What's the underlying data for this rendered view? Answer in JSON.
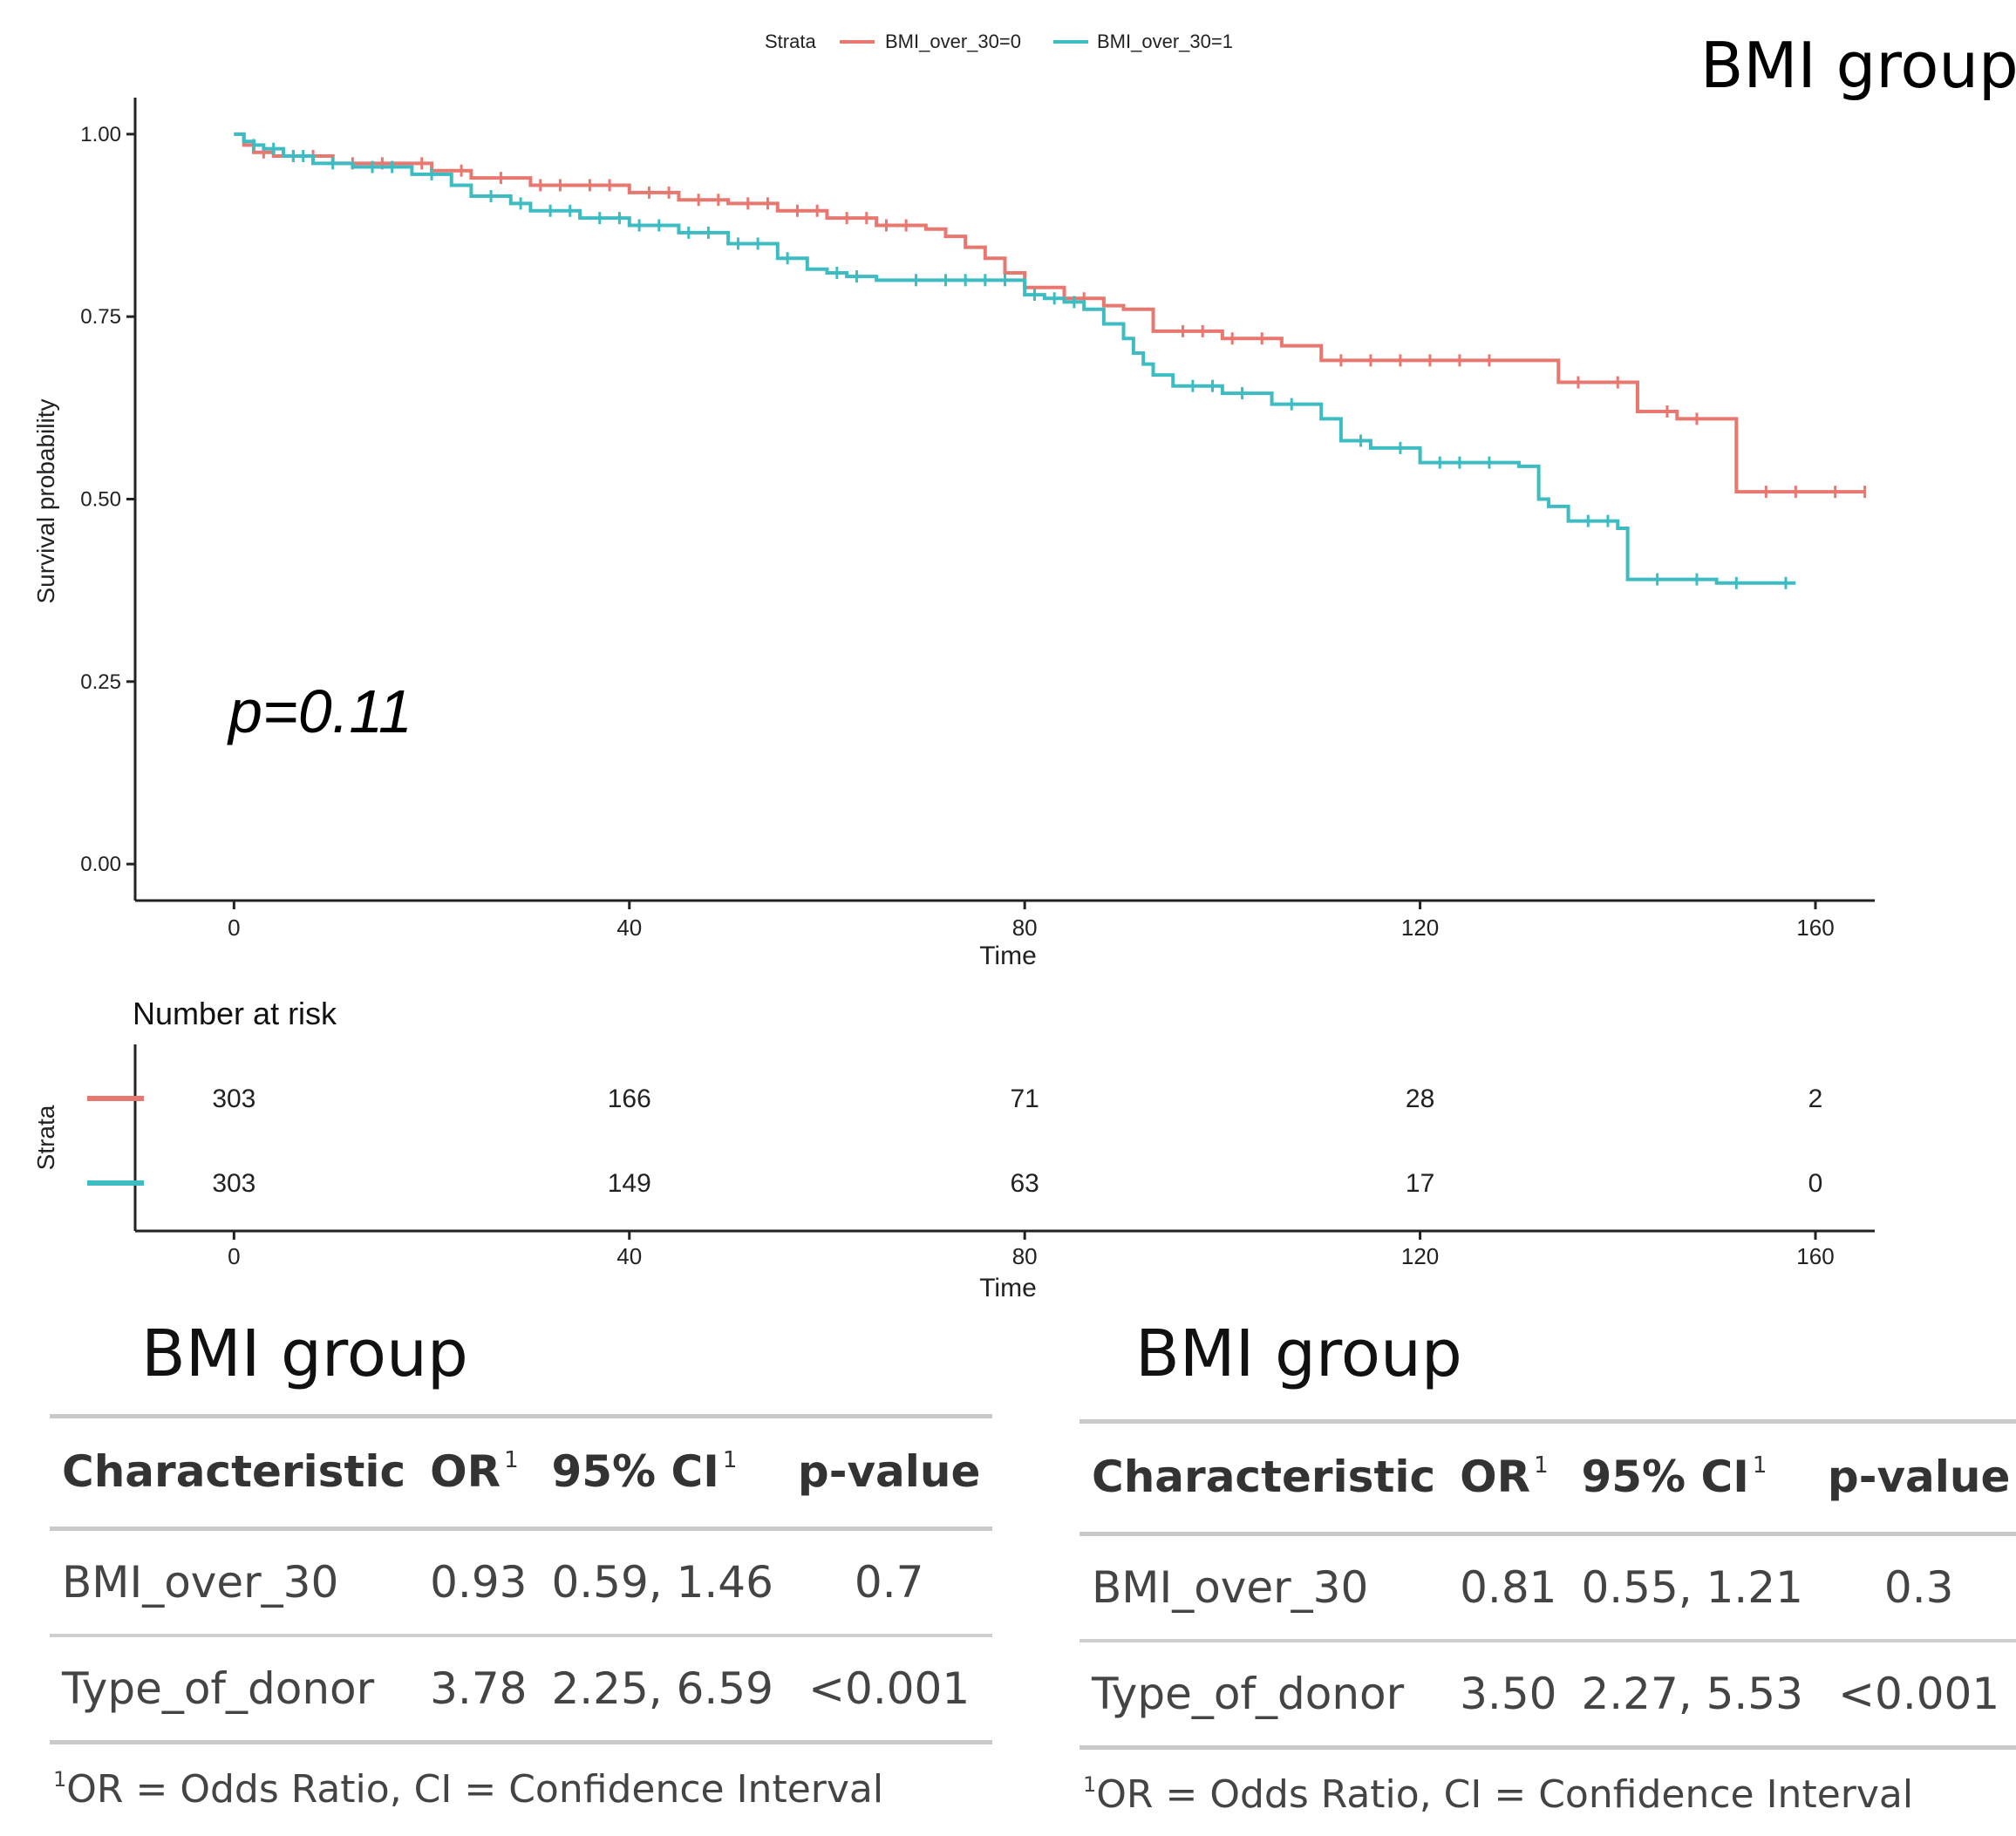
{
  "chart_data": [
    {
      "type": "line",
      "title": "BMI group",
      "xlabel": "Time",
      "ylabel": "Survival probability",
      "xlim": [
        -10,
        166
      ],
      "ylim": [
        -0.05,
        1.05
      ],
      "xticks": [
        0,
        40,
        80,
        120,
        160
      ],
      "yticks": [
        0.0,
        0.25,
        0.5,
        0.75,
        1.0
      ],
      "ytick_labels": [
        "0.00",
        "0.25",
        "0.50",
        "0.75",
        "1.00"
      ],
      "grid": false,
      "legend": {
        "title": "Strata",
        "placement": "top"
      },
      "annotation": "p=0.11",
      "series": [
        {
          "name": "BMI_over_30=0",
          "color": "#e8776f",
          "step": true,
          "x": [
            0,
            1,
            2,
            4,
            10,
            20,
            24,
            30,
            40,
            45,
            50,
            55,
            60,
            65,
            70,
            72,
            74,
            76,
            78,
            80,
            84,
            88,
            90,
            93,
            100,
            106,
            110,
            120,
            130,
            134,
            138,
            142,
            146,
            150,
            152,
            160,
            165
          ],
          "y": [
            1.0,
            0.985,
            0.975,
            0.97,
            0.96,
            0.95,
            0.94,
            0.93,
            0.92,
            0.91,
            0.905,
            0.895,
            0.885,
            0.875,
            0.87,
            0.86,
            0.845,
            0.83,
            0.81,
            0.79,
            0.775,
            0.765,
            0.76,
            0.73,
            0.72,
            0.71,
            0.69,
            0.69,
            0.69,
            0.66,
            0.66,
            0.62,
            0.61,
            0.61,
            0.51,
            0.51,
            0.51
          ],
          "censor_x": [
            3,
            6,
            8,
            12,
            15,
            19,
            23,
            27,
            31,
            33,
            36,
            38,
            42,
            44,
            47,
            49,
            52,
            54,
            57,
            59,
            62,
            64,
            66,
            68,
            86,
            96,
            98,
            101,
            104,
            112,
            115,
            118,
            121,
            124,
            127,
            136,
            140,
            145,
            148,
            155,
            158,
            162,
            165
          ]
        },
        {
          "name": "BMI_over_30=1",
          "color": "#3dbcc2",
          "step": true,
          "x": [
            0,
            1,
            2,
            3,
            5,
            8,
            12,
            18,
            22,
            24,
            28,
            30,
            35,
            40,
            45,
            50,
            55,
            58,
            60,
            62,
            65,
            67,
            70,
            75,
            80,
            82,
            84,
            86,
            88,
            90,
            91,
            92,
            93,
            95,
            100,
            105,
            110,
            112,
            115,
            120,
            125,
            130,
            132,
            133,
            135,
            140,
            141,
            150,
            158
          ],
          "y": [
            1.0,
            0.99,
            0.985,
            0.98,
            0.97,
            0.96,
            0.955,
            0.945,
            0.93,
            0.915,
            0.905,
            0.895,
            0.885,
            0.875,
            0.865,
            0.85,
            0.83,
            0.815,
            0.81,
            0.805,
            0.8,
            0.8,
            0.8,
            0.8,
            0.78,
            0.775,
            0.77,
            0.76,
            0.74,
            0.72,
            0.7,
            0.685,
            0.67,
            0.655,
            0.645,
            0.63,
            0.61,
            0.58,
            0.57,
            0.55,
            0.55,
            0.545,
            0.5,
            0.49,
            0.47,
            0.46,
            0.39,
            0.385,
            0.385
          ],
          "censor_x": [
            2,
            4,
            6,
            7,
            10,
            14,
            16,
            20,
            26,
            29,
            32,
            34,
            37,
            39,
            41,
            43,
            46,
            48,
            51,
            53,
            56,
            61,
            63,
            69,
            72,
            74,
            76,
            78,
            81,
            83,
            85,
            97,
            99,
            102,
            107,
            114,
            118,
            122,
            124,
            127,
            137,
            139,
            144,
            148,
            152,
            157
          ]
        }
      ]
    },
    {
      "type": "table",
      "title": "Number at risk",
      "xlabel": "Time",
      "ylabel": "Strata",
      "xlim": [
        -10,
        166
      ],
      "xticks": [
        0,
        40,
        80,
        120,
        160
      ],
      "rows": [
        {
          "name": "BMI_over_30=0",
          "color": "#e8776f",
          "values": [
            303,
            166,
            71,
            28,
            2
          ]
        },
        {
          "name": "BMI_over_30=1",
          "color": "#3dbcc2",
          "values": [
            303,
            149,
            63,
            17,
            0
          ]
        }
      ]
    }
  ],
  "tables": [
    {
      "title": "BMI group",
      "headers": [
        "Characteristic",
        "OR",
        "95% CI",
        "p-value"
      ],
      "header_marks": [
        "",
        "1",
        "1",
        ""
      ],
      "rows": [
        [
          "BMI_over_30",
          "0.93",
          "0.59, 1.46",
          "0.7"
        ],
        [
          "Type_of_donor",
          "3.78",
          "2.25, 6.59",
          "<0.001"
        ]
      ],
      "footnote_mark": "1",
      "footnote": "OR = Odds Ratio, CI = Confidence Interval"
    },
    {
      "title": "BMI group",
      "headers": [
        "Characteristic",
        "OR",
        "95% CI",
        "p-value"
      ],
      "header_marks": [
        "",
        "1",
        "1",
        ""
      ],
      "rows": [
        [
          "BMI_over_30",
          "0.81",
          "0.55, 1.21",
          "0.3"
        ],
        [
          "Type_of_donor",
          "3.50",
          "2.27, 5.53",
          "<0.001"
        ]
      ],
      "footnote_mark": "1",
      "footnote": "OR = Odds Ratio, CI = Confidence Interval"
    }
  ]
}
